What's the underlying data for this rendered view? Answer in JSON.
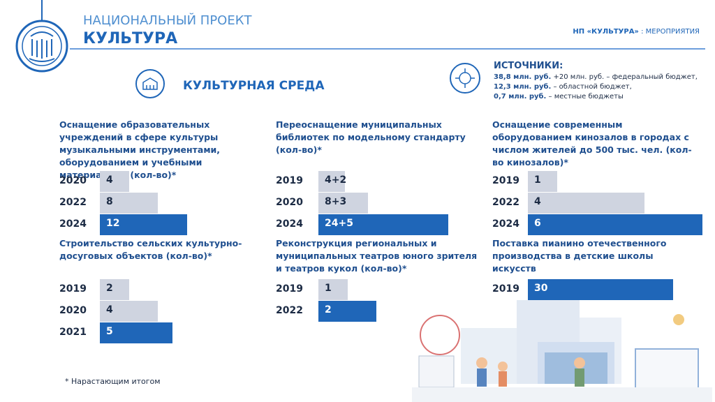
{
  "header": {
    "title_top": "НАЦИОНАЛЬНЫЙ ПРОЕКТ",
    "title_main": "КУЛЬТУРА",
    "nav_bold": "НП «КУЛЬТУРА»",
    "nav_rest": " : МЕРОПРИЯТИЯ"
  },
  "section_title": "КУЛЬТУРНАЯ СРЕДА",
  "sources": {
    "title": "ИСТОЧНИКИ:",
    "lines": [
      {
        "bold": "38,8 млн. руб.",
        "rest": " +20 млн. руб. – федеральный бюджет,"
      },
      {
        "bold": "12,3 млн. руб.",
        "rest": " – областной бюджет,"
      },
      {
        "bold": "0,7 млн. руб.",
        "rest": " – местные бюджеты"
      }
    ]
  },
  "footnote": "* Нарастающим итогом",
  "chart_data": [
    {
      "type": "bar",
      "orientation": "horizontal",
      "title": "Оснащение образовательных учреждений в сфере культуры музыкальными инструментами, оборудованием и учебными материалами (кол-во)*",
      "categories": [
        "2020",
        "2022",
        "2024"
      ],
      "values": [
        4,
        8,
        12
      ],
      "colors": [
        "#cfd4e0",
        "#cfd4e0",
        "#1f66b8"
      ],
      "xlim": [
        0,
        24
      ]
    },
    {
      "type": "bar",
      "orientation": "horizontal",
      "title": "Переоснащение муниципальных библиотек по модельному стандарту (кол-во)*",
      "categories": [
        "2019",
        "2020",
        "2024"
      ],
      "values": [
        6,
        11,
        29
      ],
      "value_labels": [
        "4+2",
        "8+3",
        "24+5"
      ],
      "colors": [
        "#cfd4e0",
        "#cfd4e0",
        "#1f66b8"
      ],
      "xlim": [
        0,
        39
      ]
    },
    {
      "type": "bar",
      "orientation": "horizontal",
      "title": "Оснащение современным оборудованием кинозалов в городах с числом жителей до 500 тыс. чел. (кол-во кинозалов)*",
      "categories": [
        "2019",
        "2022",
        "2024"
      ],
      "values": [
        1,
        4,
        6
      ],
      "colors": [
        "#cfd4e0",
        "#cfd4e0",
        "#1f66b8"
      ],
      "xlim": [
        0,
        6
      ]
    },
    {
      "type": "bar",
      "orientation": "horizontal",
      "title": "Строительство сельских культурно-досуговых объектов (кол-во)*",
      "categories": [
        "2019",
        "2020",
        "2021"
      ],
      "values": [
        2,
        4,
        5
      ],
      "colors": [
        "#cfd4e0",
        "#cfd4e0",
        "#1f66b8"
      ],
      "xlim": [
        0,
        12
      ]
    },
    {
      "type": "bar",
      "orientation": "horizontal",
      "title": "Реконструкция региональных и муниципальных театров юного зрителя и театров кукол (кол-во)*",
      "categories": [
        "2019",
        "2022"
      ],
      "values": [
        1,
        2
      ],
      "colors": [
        "#cfd4e0",
        "#1f66b8"
      ],
      "xlim": [
        0,
        6
      ]
    },
    {
      "type": "bar",
      "orientation": "horizontal",
      "title": "Поставка пианино отечественного производства в детские школы искусств",
      "categories": [
        "2019"
      ],
      "values": [
        30
      ],
      "colors": [
        "#1f66b8"
      ],
      "xlim": [
        0,
        36
      ]
    }
  ]
}
